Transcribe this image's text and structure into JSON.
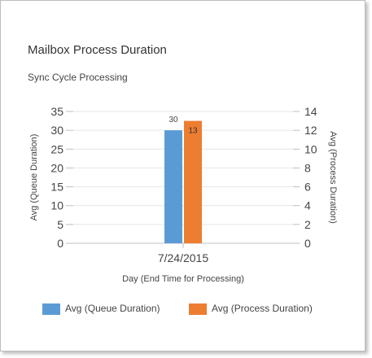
{
  "title": "Mailbox Process Duration",
  "subtitle": "Sync Cycle Processing",
  "colors": {
    "queue": "#5b9bd5",
    "process": "#ed7d31",
    "grid": "#e6e6e6",
    "axis": "#bfbfbf"
  },
  "chart_data": {
    "type": "bar",
    "categories": [
      "7/24/2015"
    ],
    "series": [
      {
        "name": "Avg (Queue Duration)",
        "values": [
          30
        ],
        "axis": "left",
        "color": "#5b9bd5"
      },
      {
        "name": "Avg (Process Duration)",
        "values": [
          13
        ],
        "axis": "right",
        "color": "#ed7d31"
      }
    ],
    "xlabel": "Day (End Time for Processing)",
    "ylabel": "Avg (Queue Duration)",
    "y2label": "Avg (Process Duration)",
    "ylim": [
      0,
      35
    ],
    "y2lim": [
      0,
      14
    ],
    "yticks": [
      0,
      5,
      10,
      15,
      20,
      25,
      30,
      35
    ],
    "y2ticks": [
      0,
      2,
      4,
      6,
      8,
      10,
      12,
      14
    ],
    "data_labels": [
      "30",
      "13"
    ],
    "legend": "bottom",
    "grid": true
  }
}
